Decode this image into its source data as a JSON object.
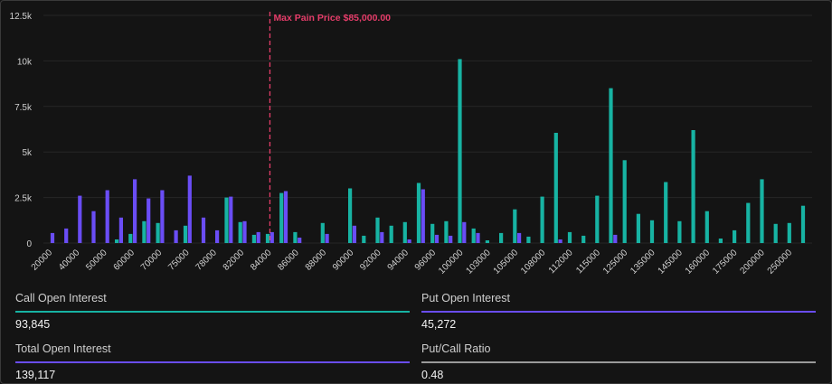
{
  "colors": {
    "call": "#17b3a3",
    "put": "#6a4df6",
    "maxpain": "#e63d6a",
    "ratio_rule": "#9a9a9a",
    "grid": "#262626"
  },
  "chart_data": {
    "type": "bar",
    "max_pain_label": "Max Pain Price $85,000.00",
    "max_pain_x_index": 16.5,
    "ylim": [
      0,
      12500
    ],
    "y_ticks": [
      0,
      2500,
      5000,
      7500,
      10000,
      12500
    ],
    "y_tick_labels": [
      "0",
      "2.5k",
      "5k",
      "7.5k",
      "10k",
      "12.5k"
    ],
    "categories": [
      "20000",
      "30000",
      "40000",
      "45000",
      "50000",
      "55000",
      "60000",
      "65000",
      "70000",
      "72000",
      "75000",
      "76000",
      "78000",
      "80000",
      "82000",
      "83000",
      "84000",
      "85000",
      "86000",
      "87000",
      "88000",
      "89000",
      "90000",
      "91000",
      "92000",
      "93000",
      "94000",
      "95000",
      "96000",
      "98000",
      "100000",
      "102000",
      "103000",
      "104000",
      "105000",
      "106000",
      "108000",
      "110000",
      "112000",
      "114000",
      "115000",
      "120000",
      "125000",
      "130000",
      "135000",
      "140000",
      "145000",
      "150000",
      "160000",
      "170000",
      "175000",
      "180000",
      "200000",
      "220000",
      "250000",
      "300000"
    ],
    "x_tick_labels": [
      "20000",
      "40000",
      "50000",
      "60000",
      "70000",
      "75000",
      "78000",
      "82000",
      "84000",
      "86000",
      "88000",
      "90000",
      "92000",
      "94000",
      "96000",
      "100000",
      "103000",
      "105000",
      "108000",
      "112000",
      "115000",
      "125000",
      "135000",
      "145000",
      "160000",
      "175000",
      "200000",
      "250000"
    ],
    "series": [
      {
        "name": "Call",
        "values": [
          0,
          0,
          0,
          0,
          0,
          200,
          500,
          1200,
          1100,
          0,
          950,
          0,
          0,
          2500,
          1150,
          450,
          500,
          2750,
          600,
          0,
          1100,
          0,
          3000,
          400,
          1400,
          950,
          1150,
          3300,
          1050,
          1200,
          10100,
          800,
          150,
          550,
          1850,
          350,
          2550,
          6050,
          600,
          400,
          2600,
          8500,
          4550,
          1600,
          1250,
          3350,
          1200,
          6200,
          1750,
          250,
          700,
          2200,
          3500,
          1050,
          1100,
          2050
        ]
      },
      {
        "name": "Put",
        "values": [
          550,
          800,
          2600,
          1750,
          2900,
          1400,
          3500,
          2450,
          2900,
          700,
          3700,
          1400,
          700,
          2550,
          1200,
          600,
          600,
          2850,
          300,
          0,
          500,
          0,
          950,
          0,
          600,
          0,
          200,
          2950,
          450,
          400,
          1150,
          550,
          0,
          0,
          550,
          0,
          0,
          200,
          0,
          0,
          0,
          450,
          0,
          0,
          0,
          0,
          0,
          0,
          0,
          0,
          0,
          0,
          0,
          0,
          0,
          0
        ]
      }
    ]
  },
  "stats": {
    "call": {
      "label": "Call Open Interest",
      "value": "93,845"
    },
    "put": {
      "label": "Put Open Interest",
      "value": "45,272"
    },
    "total": {
      "label": "Total Open Interest",
      "value": "139,117"
    },
    "ratio": {
      "label": "Put/Call Ratio",
      "value": "0.48"
    }
  }
}
